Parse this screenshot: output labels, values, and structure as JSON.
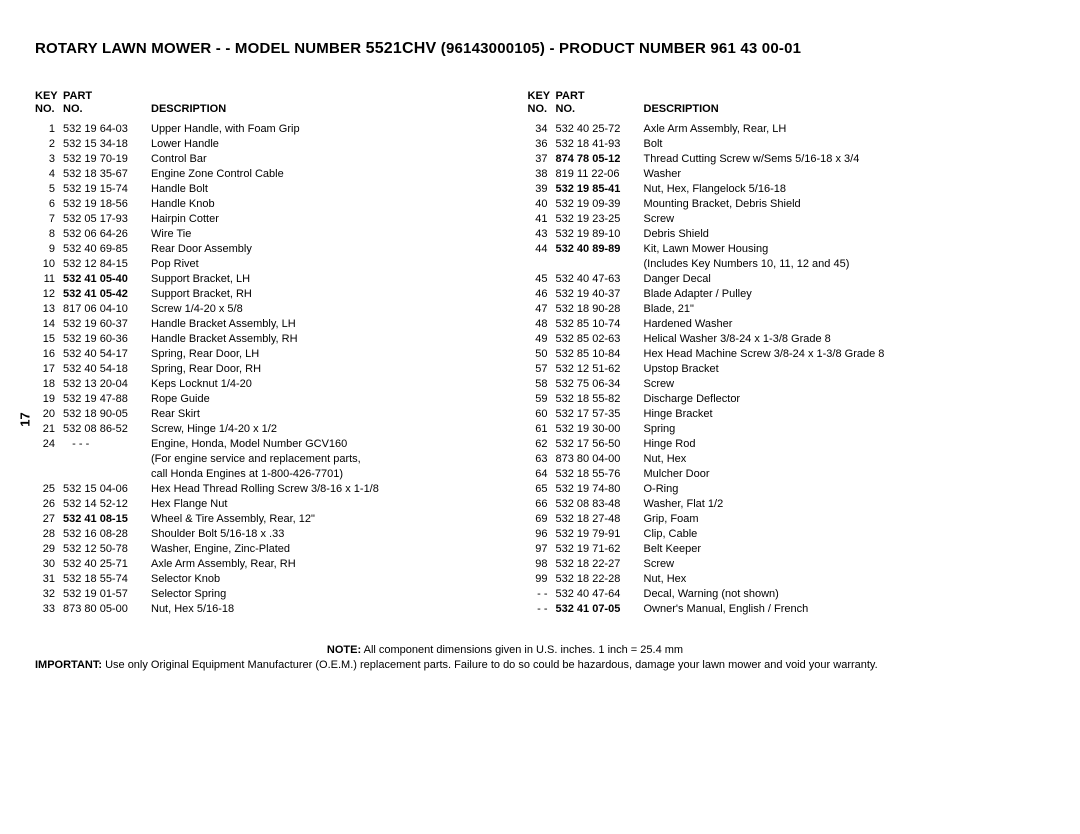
{
  "title_prefix": "ROTARY LAWN MOWER - - MODEL NUMBER ",
  "title_model": "5521CHV",
  "title_suffix": " (96143000105) - PRODUCT NUMBER 961 43 00-01",
  "page_num": "17",
  "header": {
    "key1": "KEY",
    "key2": "NO.",
    "part1": "PART",
    "part2": "NO.",
    "desc": "DESCRIPTION"
  },
  "left": [
    {
      "k": "1",
      "p": "532 19 64-03",
      "d": "Upper Handle, with Foam Grip"
    },
    {
      "k": "2",
      "p": "532 15 34-18",
      "d": "Lower Handle"
    },
    {
      "k": "3",
      "p": "532 19 70-19",
      "d": "Control Bar"
    },
    {
      "k": "4",
      "p": "532 18 35-67",
      "d": "Engine Zone Control Cable"
    },
    {
      "k": "5",
      "p": "532 19 15-74",
      "d": "Handle Bolt"
    },
    {
      "k": "6",
      "p": "532 19 18-56",
      "d": "Handle Knob"
    },
    {
      "k": "7",
      "p": "532 05 17-93",
      "d": "Hairpin Cotter"
    },
    {
      "k": "8",
      "p": "532 06 64-26",
      "d": "Wire Tie"
    },
    {
      "k": "9",
      "p": "532 40 69-85",
      "d": "Rear Door Assembly"
    },
    {
      "k": "10",
      "p": "532 12 84-15",
      "d": "Pop Rivet"
    },
    {
      "k": "11",
      "p": "532 41 05-40",
      "d": "Support Bracket, LH",
      "pb": true
    },
    {
      "k": "12",
      "p": "532 41 05-42",
      "d": "Support Bracket, RH",
      "pb": true
    },
    {
      "k": "13",
      "p": "817 06 04-10",
      "d": "Screw  1/4-20 x 5/8"
    },
    {
      "k": "14",
      "p": "532 19 60-37",
      "d": "Handle Bracket Assembly, LH"
    },
    {
      "k": "15",
      "p": "532 19 60-36",
      "d": "Handle Bracket Assembly, RH"
    },
    {
      "k": "16",
      "p": "532 40 54-17",
      "d": "Spring, Rear Door, LH"
    },
    {
      "k": "17",
      "p": "532 40 54-18",
      "d": "Spring, Rear Door, RH"
    },
    {
      "k": "18",
      "p": "532 13 20-04",
      "d": "Keps Locknut  1/4-20"
    },
    {
      "k": "19",
      "p": "532 19 47-88",
      "d": "Rope Guide"
    },
    {
      "k": "20",
      "p": "532 18 90-05",
      "d": "Rear Skirt"
    },
    {
      "k": "21",
      "p": "532 08 86-52",
      "d": "Screw, Hinge  1/4-20 x 1/2"
    },
    {
      "k": "24",
      "p": "   - - -",
      "d": "Engine, Honda, Model Number GCV160"
    },
    {
      "k": "",
      "p": "",
      "d": "(For engine service and replacement parts,"
    },
    {
      "k": "",
      "p": "",
      "d": "call Honda Engines at 1-800-426-7701)"
    },
    {
      "k": "25",
      "p": "532 15 04-06",
      "d": "Hex Head Thread Rolling Screw  3/8-16 x 1-1/8"
    },
    {
      "k": "26",
      "p": "532 14 52-12",
      "d": "Hex Flange Nut"
    },
    {
      "k": "27",
      "p": "532 41 08-15",
      "d": "Wheel & Tire Assembly, Rear, 12\"",
      "pb": true
    },
    {
      "k": "28",
      "p": "532 16 08-28",
      "d": "Shoulder Bolt  5/16-18 x .33"
    },
    {
      "k": "29",
      "p": "532 12 50-78",
      "d": "Washer, Engine, Zinc-Plated"
    },
    {
      "k": "30",
      "p": "532 40 25-71",
      "d": "Axle Arm Assembly, Rear, RH"
    },
    {
      "k": "31",
      "p": "532 18 55-74",
      "d": "Selector Knob"
    },
    {
      "k": "32",
      "p": "532 19 01-57",
      "d": "Selector Spring"
    },
    {
      "k": "33",
      "p": "873 80 05-00",
      "d": "Nut, Hex  5/16-18"
    }
  ],
  "right": [
    {
      "k": "34",
      "p": "532 40 25-72",
      "d": "Axle Arm Assembly, Rear, LH"
    },
    {
      "k": "36",
      "p": "532 18 41-93",
      "d": "Bolt"
    },
    {
      "k": "37",
      "p": "874 78 05-12",
      "d": "Thread Cutting Screw w/Sems  5/16-18 x 3/4",
      "pb": true
    },
    {
      "k": "38",
      "p": "819 11 22-06",
      "d": "Washer"
    },
    {
      "k": "39",
      "p": "532 19 85-41",
      "d": "Nut, Hex, Flangelock  5/16-18",
      "pb": true
    },
    {
      "k": "40",
      "p": "532 19 09-39",
      "d": "Mounting Bracket, Debris Shield"
    },
    {
      "k": "41",
      "p": "532 19 23-25",
      "d": "Screw"
    },
    {
      "k": "43",
      "p": "532 19 89-10",
      "d": "Debris Shield"
    },
    {
      "k": "44",
      "p": "532 40 89-89",
      "d": "Kit, Lawn Mower Housing",
      "pb": true
    },
    {
      "k": "",
      "p": "",
      "d": "(Includes Key Numbers 10, 11, 12 and 45)"
    },
    {
      "k": "45",
      "p": "532 40 47-63",
      "d": "Danger Decal"
    },
    {
      "k": "46",
      "p": "532 19 40-37",
      "d": "Blade Adapter / Pulley"
    },
    {
      "k": "47",
      "p": "532 18 90-28",
      "d": "Blade, 21\""
    },
    {
      "k": "48",
      "p": "532 85 10-74",
      "d": "Hardened Washer"
    },
    {
      "k": "49",
      "p": "532 85 02-63",
      "d": "Helical Washer  3/8-24 x 1-3/8  Grade 8"
    },
    {
      "k": "50",
      "p": "532 85 10-84",
      "d": "Hex Head Machine Screw  3/8-24 x 1-3/8  Grade 8"
    },
    {
      "k": "57",
      "p": "532 12 51-62",
      "d": "Upstop Bracket"
    },
    {
      "k": "58",
      "p": "532 75 06-34",
      "d": "Screw"
    },
    {
      "k": "59",
      "p": "532 18 55-82",
      "d": "Discharge Deflector"
    },
    {
      "k": "60",
      "p": "532 17 57-35",
      "d": "Hinge Bracket"
    },
    {
      "k": "61",
      "p": "532 19 30-00",
      "d": "Spring"
    },
    {
      "k": "62",
      "p": "532 17 56-50",
      "d": "Hinge Rod"
    },
    {
      "k": "63",
      "p": "873 80 04-00",
      "d": "Nut, Hex"
    },
    {
      "k": "64",
      "p": "532 18 55-76",
      "d": "Mulcher Door"
    },
    {
      "k": "65",
      "p": "532 19 74-80",
      "d": "O-Ring"
    },
    {
      "k": "66",
      "p": "532 08 83-48",
      "d": "Washer, Flat  1/2"
    },
    {
      "k": "69",
      "p": "532 18 27-48",
      "d": "Grip, Foam"
    },
    {
      "k": "96",
      "p": "532 19 79-91",
      "d": "Clip, Cable"
    },
    {
      "k": "97",
      "p": "532 19 71-62",
      "d": "Belt Keeper"
    },
    {
      "k": "98",
      "p": "532 18 22-27",
      "d": "Screw"
    },
    {
      "k": "99",
      "p": "532 18 22-28",
      "d": "Nut, Hex"
    },
    {
      "k": "- -",
      "p": "532 40 47-64",
      "d": "Decal, Warning (not shown)"
    },
    {
      "k": "- -",
      "p": "532 41 07-05",
      "d": "Owner's Manual, English / French",
      "pb": true
    }
  ],
  "note_label": "NOTE:",
  "note_text": " All component dimensions given in U.S. inches.  1 inch = 25.4 mm",
  "imp_label": "IMPORTANT:",
  "imp_text": " Use only Original Equipment Manufacturer (O.E.M.) replacement parts.  Failure to do so could be hazardous, damage your lawn mower and void your warranty."
}
